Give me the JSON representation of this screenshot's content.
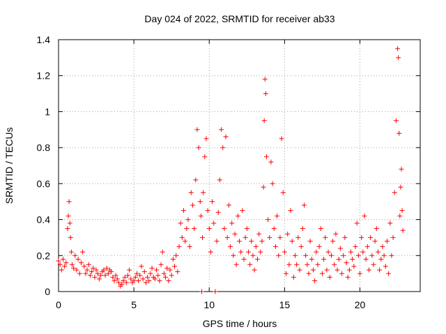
{
  "chart_data": {
    "type": "scatter",
    "title": "Day 024 of 2022, SRMTID for receiver ab33",
    "xlabel": "GPS time / hours",
    "ylabel": "SRMTID / TECUs",
    "xlim": [
      0,
      24
    ],
    "ylim": [
      0,
      1.4
    ],
    "xticks": [
      0,
      5,
      10,
      15,
      20
    ],
    "xtick_labels": [
      "0",
      "5",
      "10",
      "15",
      "20"
    ],
    "yticks": [
      0,
      0.2,
      0.4,
      0.6,
      0.8,
      1.0,
      1.2,
      1.4
    ],
    "ytick_labels": [
      "0",
      "0.2",
      "0.4",
      "0.6",
      "0.8",
      "1",
      "1.2",
      "1.4"
    ],
    "grid": true,
    "marker": "+",
    "color": "#ff0000",
    "series": [
      {
        "name": "SRMTID",
        "x": [
          0.0,
          0.1,
          0.2,
          0.3,
          0.4,
          0.5,
          0.6,
          0.65,
          0.7,
          0.75,
          0.8,
          0.85,
          0.9,
          1.0,
          1.1,
          1.2,
          1.3,
          1.4,
          1.5,
          1.6,
          1.7,
          1.8,
          1.9,
          2.0,
          2.1,
          2.2,
          2.3,
          2.4,
          2.5,
          2.6,
          2.7,
          2.8,
          2.9,
          3.0,
          3.1,
          3.2,
          3.3,
          3.4,
          3.5,
          3.6,
          3.7,
          3.8,
          3.9,
          4.0,
          4.1,
          4.2,
          4.3,
          4.4,
          4.5,
          4.6,
          4.7,
          4.8,
          4.9,
          5.0,
          5.1,
          5.2,
          5.3,
          5.4,
          5.5,
          5.6,
          5.7,
          5.8,
          5.9,
          6.0,
          6.1,
          6.2,
          6.3,
          6.4,
          6.5,
          6.6,
          6.7,
          6.8,
          6.9,
          7.0,
          7.1,
          7.2,
          7.3,
          7.4,
          7.5,
          7.6,
          7.7,
          7.8,
          7.9,
          8.0,
          8.1,
          8.2,
          8.3,
          8.4,
          8.5,
          8.6,
          8.7,
          8.8,
          8.9,
          9.0,
          9.1,
          9.2,
          9.3,
          9.4,
          9.45,
          9.5,
          9.55,
          9.6,
          9.7,
          9.8,
          9.9,
          10.0,
          10.1,
          10.2,
          10.3,
          10.4,
          10.5,
          10.6,
          10.7,
          10.8,
          10.9,
          11.0,
          11.1,
          11.2,
          11.3,
          11.4,
          11.5,
          11.6,
          11.7,
          11.8,
          11.9,
          12.0,
          12.1,
          12.2,
          12.3,
          12.4,
          12.5,
          12.6,
          12.7,
          12.8,
          12.9,
          13.0,
          13.1,
          13.2,
          13.3,
          13.4,
          13.5,
          13.6,
          13.65,
          13.7,
          13.75,
          13.8,
          13.9,
          14.0,
          14.1,
          14.2,
          14.3,
          14.4,
          14.5,
          14.6,
          14.7,
          14.8,
          14.9,
          15.0,
          15.1,
          15.2,
          15.3,
          15.4,
          15.5,
          15.6,
          15.7,
          15.8,
          15.9,
          16.0,
          16.1,
          16.2,
          16.3,
          16.4,
          16.5,
          16.6,
          16.7,
          16.8,
          16.9,
          17.0,
          17.1,
          17.2,
          17.3,
          17.4,
          17.5,
          17.6,
          17.7,
          17.8,
          17.9,
          18.0,
          18.1,
          18.2,
          18.3,
          18.4,
          18.5,
          18.6,
          18.7,
          18.8,
          18.9,
          19.0,
          19.1,
          19.2,
          19.3,
          19.4,
          19.5,
          19.6,
          19.7,
          19.8,
          19.9,
          20.0,
          20.1,
          20.2,
          20.3,
          20.4,
          20.5,
          20.6,
          20.7,
          20.8,
          20.9,
          21.0,
          21.1,
          21.2,
          21.3,
          21.4,
          21.5,
          21.6,
          21.7,
          21.8,
          21.9,
          22.0,
          22.1,
          22.2,
          22.3,
          22.4,
          22.5,
          22.55,
          22.6,
          22.65,
          22.7,
          22.75,
          22.8,
          22.85
        ],
        "y": [
          0.17,
          0.15,
          0.12,
          0.18,
          0.14,
          0.16,
          0.35,
          0.42,
          0.5,
          0.38,
          0.3,
          0.22,
          0.15,
          0.13,
          0.2,
          0.12,
          0.18,
          0.1,
          0.16,
          0.22,
          0.14,
          0.1,
          0.12,
          0.15,
          0.09,
          0.11,
          0.13,
          0.08,
          0.12,
          0.1,
          0.07,
          0.09,
          0.11,
          0.12,
          0.09,
          0.13,
          0.1,
          0.12,
          0.11,
          0.08,
          0.06,
          0.09,
          0.07,
          0.05,
          0.03,
          0.04,
          0.06,
          0.08,
          0.05,
          0.09,
          0.12,
          0.07,
          0.05,
          0.06,
          0.08,
          0.1,
          0.06,
          0.09,
          0.14,
          0.07,
          0.11,
          0.05,
          0.08,
          0.06,
          0.1,
          0.13,
          0.08,
          0.07,
          0.12,
          0.09,
          0.06,
          0.15,
          0.22,
          0.1,
          0.08,
          0.13,
          0.06,
          0.12,
          0.09,
          0.18,
          0.14,
          0.2,
          0.11,
          0.25,
          0.38,
          0.3,
          0.45,
          0.28,
          0.35,
          0.4,
          0.25,
          0.55,
          0.48,
          0.35,
          0.62,
          0.9,
          0.8,
          0.5,
          0.42,
          0.0,
          0.3,
          0.55,
          0.75,
          0.85,
          0.45,
          0.35,
          0.22,
          0.5,
          0.38,
          0.0,
          0.28,
          0.44,
          0.62,
          0.9,
          0.8,
          0.35,
          0.86,
          0.3,
          0.48,
          0.25,
          0.38,
          0.2,
          0.32,
          0.15,
          0.42,
          0.28,
          0.22,
          0.45,
          0.18,
          0.3,
          0.35,
          0.22,
          0.15,
          0.28,
          0.2,
          0.12,
          0.25,
          0.18,
          0.32,
          0.22,
          0.28,
          0.58,
          0.95,
          1.18,
          1.1,
          0.75,
          0.4,
          0.3,
          0.72,
          0.6,
          0.35,
          0.25,
          0.42,
          0.2,
          0.3,
          0.85,
          0.55,
          0.22,
          0.1,
          0.32,
          0.15,
          0.45,
          0.28,
          0.08,
          0.2,
          0.15,
          0.3,
          0.12,
          0.25,
          0.35,
          0.48,
          0.2,
          0.15,
          0.1,
          0.28,
          0.18,
          0.12,
          0.06,
          0.22,
          0.15,
          0.25,
          0.35,
          0.1,
          0.18,
          0.3,
          0.12,
          0.22,
          0.08,
          0.2,
          0.28,
          0.15,
          0.32,
          0.12,
          0.18,
          0.24,
          0.1,
          0.2,
          0.3,
          0.16,
          0.08,
          0.12,
          0.22,
          0.18,
          0.14,
          0.25,
          0.38,
          0.2,
          0.1,
          0.3,
          0.22,
          0.42,
          0.18,
          0.25,
          0.12,
          0.3,
          0.2,
          0.15,
          0.28,
          0.35,
          0.22,
          0.12,
          0.18,
          0.25,
          0.2,
          0.14,
          0.28,
          0.1,
          0.38,
          0.2,
          0.3,
          0.55,
          0.95,
          1.35,
          1.3,
          0.88,
          0.42,
          0.58,
          0.68,
          0.45,
          0.34
        ]
      }
    ]
  }
}
